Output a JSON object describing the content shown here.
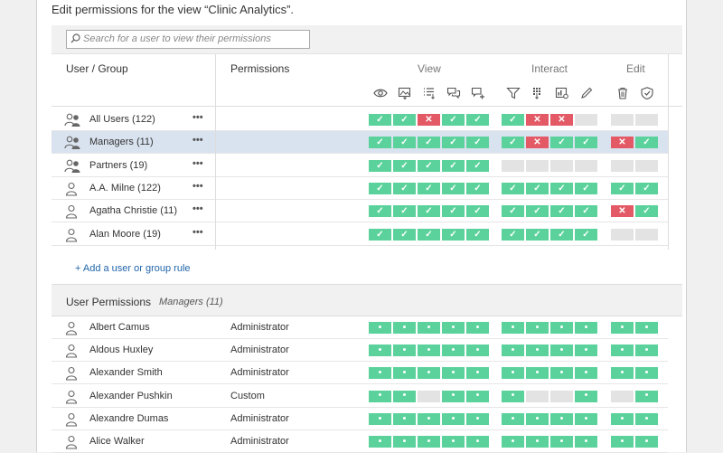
{
  "intro": "Edit permissions for the view “Clinic Analytics”.",
  "search": {
    "placeholder": "Search for a user to view their permissions"
  },
  "header": {
    "user_group": "User / Group",
    "permissions": "Permissions",
    "groups": [
      "View",
      "Interact",
      "Edit"
    ]
  },
  "rules": [
    {
      "name": "All Users (122)",
      "type": "group",
      "perm": "",
      "cells": [
        "a",
        "a",
        "d",
        "a",
        "a",
        "a",
        "d",
        "d",
        "n",
        "n",
        "n"
      ]
    },
    {
      "name": "Managers (11)",
      "type": "group",
      "perm": "",
      "selected": true,
      "cells": [
        "a",
        "a",
        "a",
        "a",
        "a",
        "a",
        "d",
        "a",
        "a",
        "d",
        "a"
      ]
    },
    {
      "name": "Partners (19)",
      "type": "group",
      "perm": "",
      "cells": [
        "a",
        "a",
        "a",
        "a",
        "a",
        "n",
        "n",
        "n",
        "n",
        "n",
        "n"
      ]
    },
    {
      "name": "A.A. Milne (122)",
      "type": "user",
      "perm": "",
      "cells": [
        "a",
        "a",
        "a",
        "a",
        "a",
        "a",
        "a",
        "a",
        "a",
        "a",
        "a"
      ]
    },
    {
      "name": "Agatha Christie (11)",
      "type": "user",
      "perm": "",
      "cells": [
        "a",
        "a",
        "a",
        "a",
        "a",
        "a",
        "a",
        "a",
        "a",
        "d",
        "a"
      ]
    },
    {
      "name": "Alan Moore (19)",
      "type": "user",
      "perm": "",
      "cells": [
        "a",
        "a",
        "a",
        "a",
        "a",
        "a",
        "a",
        "a",
        "a",
        "n",
        "n"
      ]
    }
  ],
  "more_label": "•••",
  "add_link": "+ Add a user or group rule",
  "user_permissions": {
    "title": "User Permissions",
    "subtitle": "Managers (11)"
  },
  "users": [
    {
      "name": "Albert Camus",
      "perm": "Administrator",
      "cells": [
        "a",
        "a",
        "a",
        "a",
        "a",
        "a",
        "a",
        "a",
        "a",
        "a",
        "a"
      ]
    },
    {
      "name": "Aldous Huxley",
      "perm": "Administrator",
      "cells": [
        "a",
        "a",
        "a",
        "a",
        "a",
        "a",
        "a",
        "a",
        "a",
        "a",
        "a"
      ]
    },
    {
      "name": "Alexander Smith",
      "perm": "Administrator",
      "cells": [
        "a",
        "a",
        "a",
        "a",
        "a",
        "a",
        "a",
        "a",
        "a",
        "a",
        "a"
      ]
    },
    {
      "name": "Alexander Pushkin",
      "perm": "Custom",
      "cells": [
        "a",
        "a",
        "n",
        "a",
        "a",
        "a",
        "n",
        "n",
        "a",
        "n",
        "a"
      ]
    },
    {
      "name": "Alexandre Dumas",
      "perm": "Administrator",
      "cells": [
        "a",
        "a",
        "a",
        "a",
        "a",
        "a",
        "a",
        "a",
        "a",
        "a",
        "a"
      ]
    },
    {
      "name": "Alice Walker",
      "perm": "Administrator",
      "cells": [
        "a",
        "a",
        "a",
        "a",
        "a",
        "a",
        "a",
        "a",
        "a",
        "a",
        "a"
      ]
    }
  ],
  "colors": {
    "allow": "#5bd29b",
    "deny": "#e35a66",
    "none": "#e3e3e3",
    "selected_row": "#d9e3ef"
  },
  "icons": [
    "eye-icon",
    "image-download-icon",
    "list-download-icon",
    "comments-icon",
    "add-comment-icon",
    "filter-icon",
    "data-download-icon",
    "workbook-icon",
    "pencil-icon",
    "trash-icon",
    "shield-check-icon"
  ]
}
